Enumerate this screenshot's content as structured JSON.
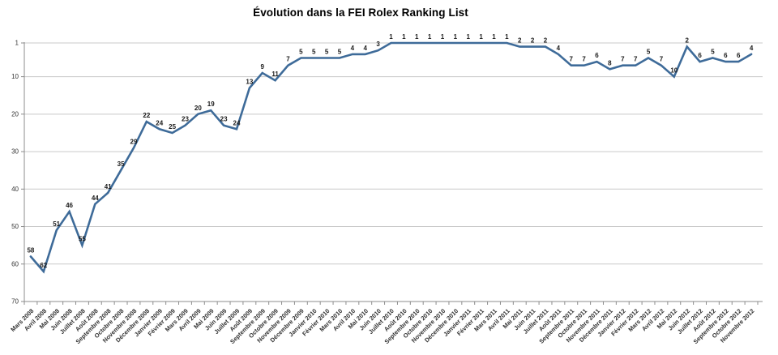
{
  "chart_data": {
    "type": "line",
    "title": "Évolution dans la FEI Rolex Ranking List",
    "categories": [
      "Mars 2008",
      "Avril 2008",
      "Mai 2008",
      "Juin 2008",
      "Juillet 2008",
      "Août 2008",
      "Septembre 2008",
      "Octobre 2008",
      "Novembre 2008",
      "Décembre 2008",
      "Janvier 2009",
      "Février 2009",
      "Mars 2009",
      "Avril 2009",
      "Mai 2009",
      "Juin 2009",
      "Juillet 2009",
      "Août 2009",
      "Septembre 2009",
      "Octobre 2009",
      "Novembre 2009",
      "Décembre 2009",
      "Janvier 2010",
      "Février 2010",
      "Mars 2010",
      "Avril 2010",
      "Mai 2010",
      "Juin 2010",
      "Juillet 2010",
      "Août 2010",
      "Septembre 2010",
      "Octobre 2010",
      "Novembre 2010",
      "Décembre 2010",
      "Janvier 2011",
      "Février 2011",
      "Mars 2011",
      "Avril 2011",
      "Mai 2011",
      "Juin 2011",
      "Juillet 2011",
      "Août 2011",
      "Septembre 2011",
      "Octobre 2011",
      "Novembre 2011",
      "Décembre 2011",
      "Janvier 2012",
      "Février 2012",
      "Mars 2012",
      "Avril 2012",
      "Mai 2012",
      "Juin 2012",
      "Juillet 2012",
      "Août 2012",
      "Septembre 2012",
      "Octobre 2012",
      "Novembre 2012"
    ],
    "values": [
      58,
      62,
      51,
      46,
      55,
      44,
      41,
      35,
      29,
      22,
      24,
      25,
      23,
      20,
      19,
      23,
      24,
      13,
      9,
      11,
      7,
      5,
      5,
      5,
      5,
      4,
      4,
      3,
      1,
      1,
      1,
      1,
      1,
      1,
      1,
      1,
      1,
      1,
      2,
      2,
      2,
      4,
      7,
      7,
      6,
      8,
      7,
      7,
      5,
      7,
      10,
      2,
      6,
      5,
      6,
      6,
      4
    ],
    "xlabel": "",
    "ylabel": "",
    "ylim": [
      1,
      70
    ],
    "y_ticks": [
      1,
      10,
      20,
      30,
      40,
      50,
      60,
      70
    ],
    "y_axis_inverted": true,
    "grid": true,
    "legend": "none",
    "line_color": "#3E6B99",
    "grid_color": "#C9C9C9",
    "axis_color": "#8C8C8C",
    "label_color": "#1A1A1A",
    "tick_label_color": "#333333"
  }
}
